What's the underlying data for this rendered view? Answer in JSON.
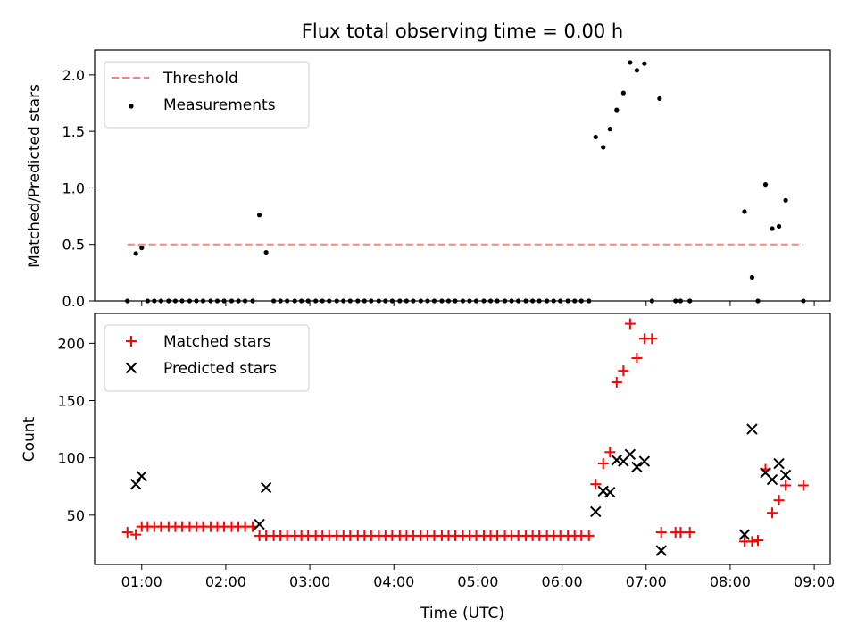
{
  "figure": {
    "title": "Flux total observing time = 0.00 h",
    "xlabel": "Time (UTC)",
    "x_ticks": [
      {
        "value": 1.0,
        "label": "01:00"
      },
      {
        "value": 2.0,
        "label": "02:00"
      },
      {
        "value": 3.0,
        "label": "03:00"
      },
      {
        "value": 4.0,
        "label": "04:00"
      },
      {
        "value": 5.0,
        "label": "05:00"
      },
      {
        "value": 6.0,
        "label": "06:00"
      },
      {
        "value": 7.0,
        "label": "07:00"
      },
      {
        "value": 8.0,
        "label": "08:00"
      },
      {
        "value": 9.0,
        "label": "09:00"
      }
    ],
    "xlim": [
      0.44,
      9.19
    ]
  },
  "colors": {
    "threshold": "#ff8080",
    "measurements": "#000000",
    "matched": "#ff0000",
    "predicted": "#000000"
  },
  "chart_data": [
    {
      "type": "scatter",
      "ylabel": "Matched/Predicted stars",
      "ylim": [
        0,
        2.22
      ],
      "y_ticks": [
        0.0,
        0.5,
        1.0,
        1.5,
        2.0
      ],
      "y_tick_labels": [
        "0.0",
        "0.5",
        "1.0",
        "1.5",
        "2.0"
      ],
      "legend_placement": "top-left",
      "threshold": {
        "name": "Threshold",
        "y": 0.5,
        "x_range": [
          0.83,
          8.87
        ]
      },
      "series": [
        {
          "name": "Measurements",
          "points": [
            [
              0.83,
              0
            ],
            [
              0.93,
              0.42
            ],
            [
              1.0,
              0.47
            ],
            [
              1.07,
              0
            ],
            [
              1.15,
              0
            ],
            [
              1.23,
              0
            ],
            [
              1.32,
              0
            ],
            [
              1.4,
              0
            ],
            [
              1.48,
              0
            ],
            [
              1.57,
              0
            ],
            [
              1.65,
              0
            ],
            [
              1.73,
              0
            ],
            [
              1.82,
              0
            ],
            [
              1.9,
              0
            ],
            [
              1.98,
              0
            ],
            [
              2.07,
              0
            ],
            [
              2.15,
              0
            ],
            [
              2.23,
              0
            ],
            [
              2.32,
              0
            ],
            [
              2.4,
              0.76
            ],
            [
              2.48,
              0.43
            ],
            [
              2.57,
              0
            ],
            [
              2.65,
              0
            ],
            [
              2.73,
              0
            ],
            [
              2.82,
              0
            ],
            [
              2.9,
              0
            ],
            [
              2.98,
              0
            ],
            [
              3.07,
              0
            ],
            [
              3.15,
              0
            ],
            [
              3.23,
              0
            ],
            [
              3.32,
              0
            ],
            [
              3.4,
              0
            ],
            [
              3.48,
              0
            ],
            [
              3.57,
              0
            ],
            [
              3.65,
              0
            ],
            [
              3.73,
              0
            ],
            [
              3.82,
              0
            ],
            [
              3.9,
              0
            ],
            [
              3.98,
              0
            ],
            [
              4.07,
              0
            ],
            [
              4.15,
              0
            ],
            [
              4.23,
              0
            ],
            [
              4.32,
              0
            ],
            [
              4.4,
              0
            ],
            [
              4.48,
              0
            ],
            [
              4.57,
              0
            ],
            [
              4.65,
              0
            ],
            [
              4.73,
              0
            ],
            [
              4.82,
              0
            ],
            [
              4.9,
              0
            ],
            [
              4.98,
              0
            ],
            [
              5.07,
              0
            ],
            [
              5.15,
              0
            ],
            [
              5.23,
              0
            ],
            [
              5.32,
              0
            ],
            [
              5.4,
              0
            ],
            [
              5.48,
              0
            ],
            [
              5.57,
              0
            ],
            [
              5.65,
              0
            ],
            [
              5.73,
              0
            ],
            [
              5.82,
              0
            ],
            [
              5.9,
              0
            ],
            [
              5.98,
              0
            ],
            [
              6.07,
              0
            ],
            [
              6.15,
              0
            ],
            [
              6.23,
              0
            ],
            [
              6.32,
              0
            ],
            [
              6.4,
              1.45
            ],
            [
              6.49,
              1.36
            ],
            [
              6.57,
              1.52
            ],
            [
              6.65,
              1.69
            ],
            [
              6.73,
              1.84
            ],
            [
              6.81,
              2.11
            ],
            [
              6.89,
              2.04
            ],
            [
              6.98,
              2.1
            ],
            [
              7.07,
              0
            ],
            [
              7.16,
              1.79
            ],
            [
              7.35,
              0
            ],
            [
              7.41,
              0
            ],
            [
              7.52,
              0
            ],
            [
              8.17,
              0.79
            ],
            [
              8.26,
              0.21
            ],
            [
              8.33,
              0
            ],
            [
              8.42,
              1.03
            ],
            [
              8.5,
              0.64
            ],
            [
              8.58,
              0.66
            ],
            [
              8.66,
              0.89
            ],
            [
              8.87,
              0
            ]
          ]
        }
      ]
    },
    {
      "type": "scatter",
      "ylabel": "Count",
      "ylim": [
        7,
        226
      ],
      "y_ticks": [
        50,
        100,
        150,
        200
      ],
      "y_tick_labels": [
        "50",
        "100",
        "150",
        "200"
      ],
      "legend_placement": "top-left",
      "series": [
        {
          "name": "Matched stars",
          "marker": "plus",
          "points": [
            [
              0.83,
              35
            ],
            [
              0.93,
              33
            ],
            [
              1.0,
              40
            ],
            [
              1.07,
              40
            ],
            [
              1.15,
              40
            ],
            [
              1.23,
              40
            ],
            [
              1.32,
              40
            ],
            [
              1.4,
              40
            ],
            [
              1.48,
              40
            ],
            [
              1.57,
              40
            ],
            [
              1.65,
              40
            ],
            [
              1.73,
              40
            ],
            [
              1.82,
              40
            ],
            [
              1.9,
              40
            ],
            [
              1.98,
              40
            ],
            [
              2.07,
              40
            ],
            [
              2.15,
              40
            ],
            [
              2.23,
              40
            ],
            [
              2.32,
              40
            ],
            [
              2.4,
              32
            ],
            [
              2.48,
              32
            ],
            [
              2.57,
              32
            ],
            [
              2.65,
              32
            ],
            [
              2.73,
              32
            ],
            [
              2.82,
              32
            ],
            [
              2.9,
              32
            ],
            [
              2.98,
              32
            ],
            [
              3.07,
              32
            ],
            [
              3.15,
              32
            ],
            [
              3.23,
              32
            ],
            [
              3.32,
              32
            ],
            [
              3.4,
              32
            ],
            [
              3.48,
              32
            ],
            [
              3.57,
              32
            ],
            [
              3.65,
              32
            ],
            [
              3.73,
              32
            ],
            [
              3.82,
              32
            ],
            [
              3.9,
              32
            ],
            [
              3.98,
              32
            ],
            [
              4.07,
              32
            ],
            [
              4.15,
              32
            ],
            [
              4.23,
              32
            ],
            [
              4.32,
              32
            ],
            [
              4.4,
              32
            ],
            [
              4.48,
              32
            ],
            [
              4.57,
              32
            ],
            [
              4.65,
              32
            ],
            [
              4.73,
              32
            ],
            [
              4.82,
              32
            ],
            [
              4.9,
              32
            ],
            [
              4.98,
              32
            ],
            [
              5.07,
              32
            ],
            [
              5.15,
              32
            ],
            [
              5.23,
              32
            ],
            [
              5.32,
              32
            ],
            [
              5.4,
              32
            ],
            [
              5.48,
              32
            ],
            [
              5.57,
              32
            ],
            [
              5.65,
              32
            ],
            [
              5.73,
              32
            ],
            [
              5.82,
              32
            ],
            [
              5.9,
              32
            ],
            [
              5.98,
              32
            ],
            [
              6.07,
              32
            ],
            [
              6.15,
              32
            ],
            [
              6.23,
              32
            ],
            [
              6.32,
              32
            ],
            [
              6.4,
              77
            ],
            [
              6.49,
              95
            ],
            [
              6.57,
              105
            ],
            [
              6.65,
              166
            ],
            [
              6.73,
              176
            ],
            [
              6.81,
              217
            ],
            [
              6.89,
              187
            ],
            [
              6.98,
              204
            ],
            [
              7.07,
              204
            ],
            [
              7.18,
              35
            ],
            [
              7.35,
              35
            ],
            [
              7.41,
              35
            ],
            [
              7.52,
              35
            ],
            [
              8.17,
              27
            ],
            [
              8.26,
              27
            ],
            [
              8.33,
              28
            ],
            [
              8.42,
              90
            ],
            [
              8.5,
              52
            ],
            [
              8.58,
              63
            ],
            [
              8.66,
              76
            ],
            [
              8.87,
              76
            ]
          ]
        },
        {
          "name": "Predicted stars",
          "marker": "x",
          "points": [
            [
              0.93,
              77
            ],
            [
              1.0,
              84
            ],
            [
              2.4,
              42
            ],
            [
              2.48,
              74
            ],
            [
              6.4,
              53
            ],
            [
              6.49,
              71
            ],
            [
              6.57,
              70
            ],
            [
              6.65,
              98
            ],
            [
              6.73,
              97
            ],
            [
              6.81,
              103
            ],
            [
              6.89,
              92
            ],
            [
              6.98,
              97
            ],
            [
              7.18,
              19
            ],
            [
              8.17,
              33
            ],
            [
              8.26,
              125
            ],
            [
              8.42,
              87
            ],
            [
              8.5,
              81
            ],
            [
              8.58,
              95
            ],
            [
              8.66,
              85
            ]
          ]
        }
      ]
    }
  ]
}
